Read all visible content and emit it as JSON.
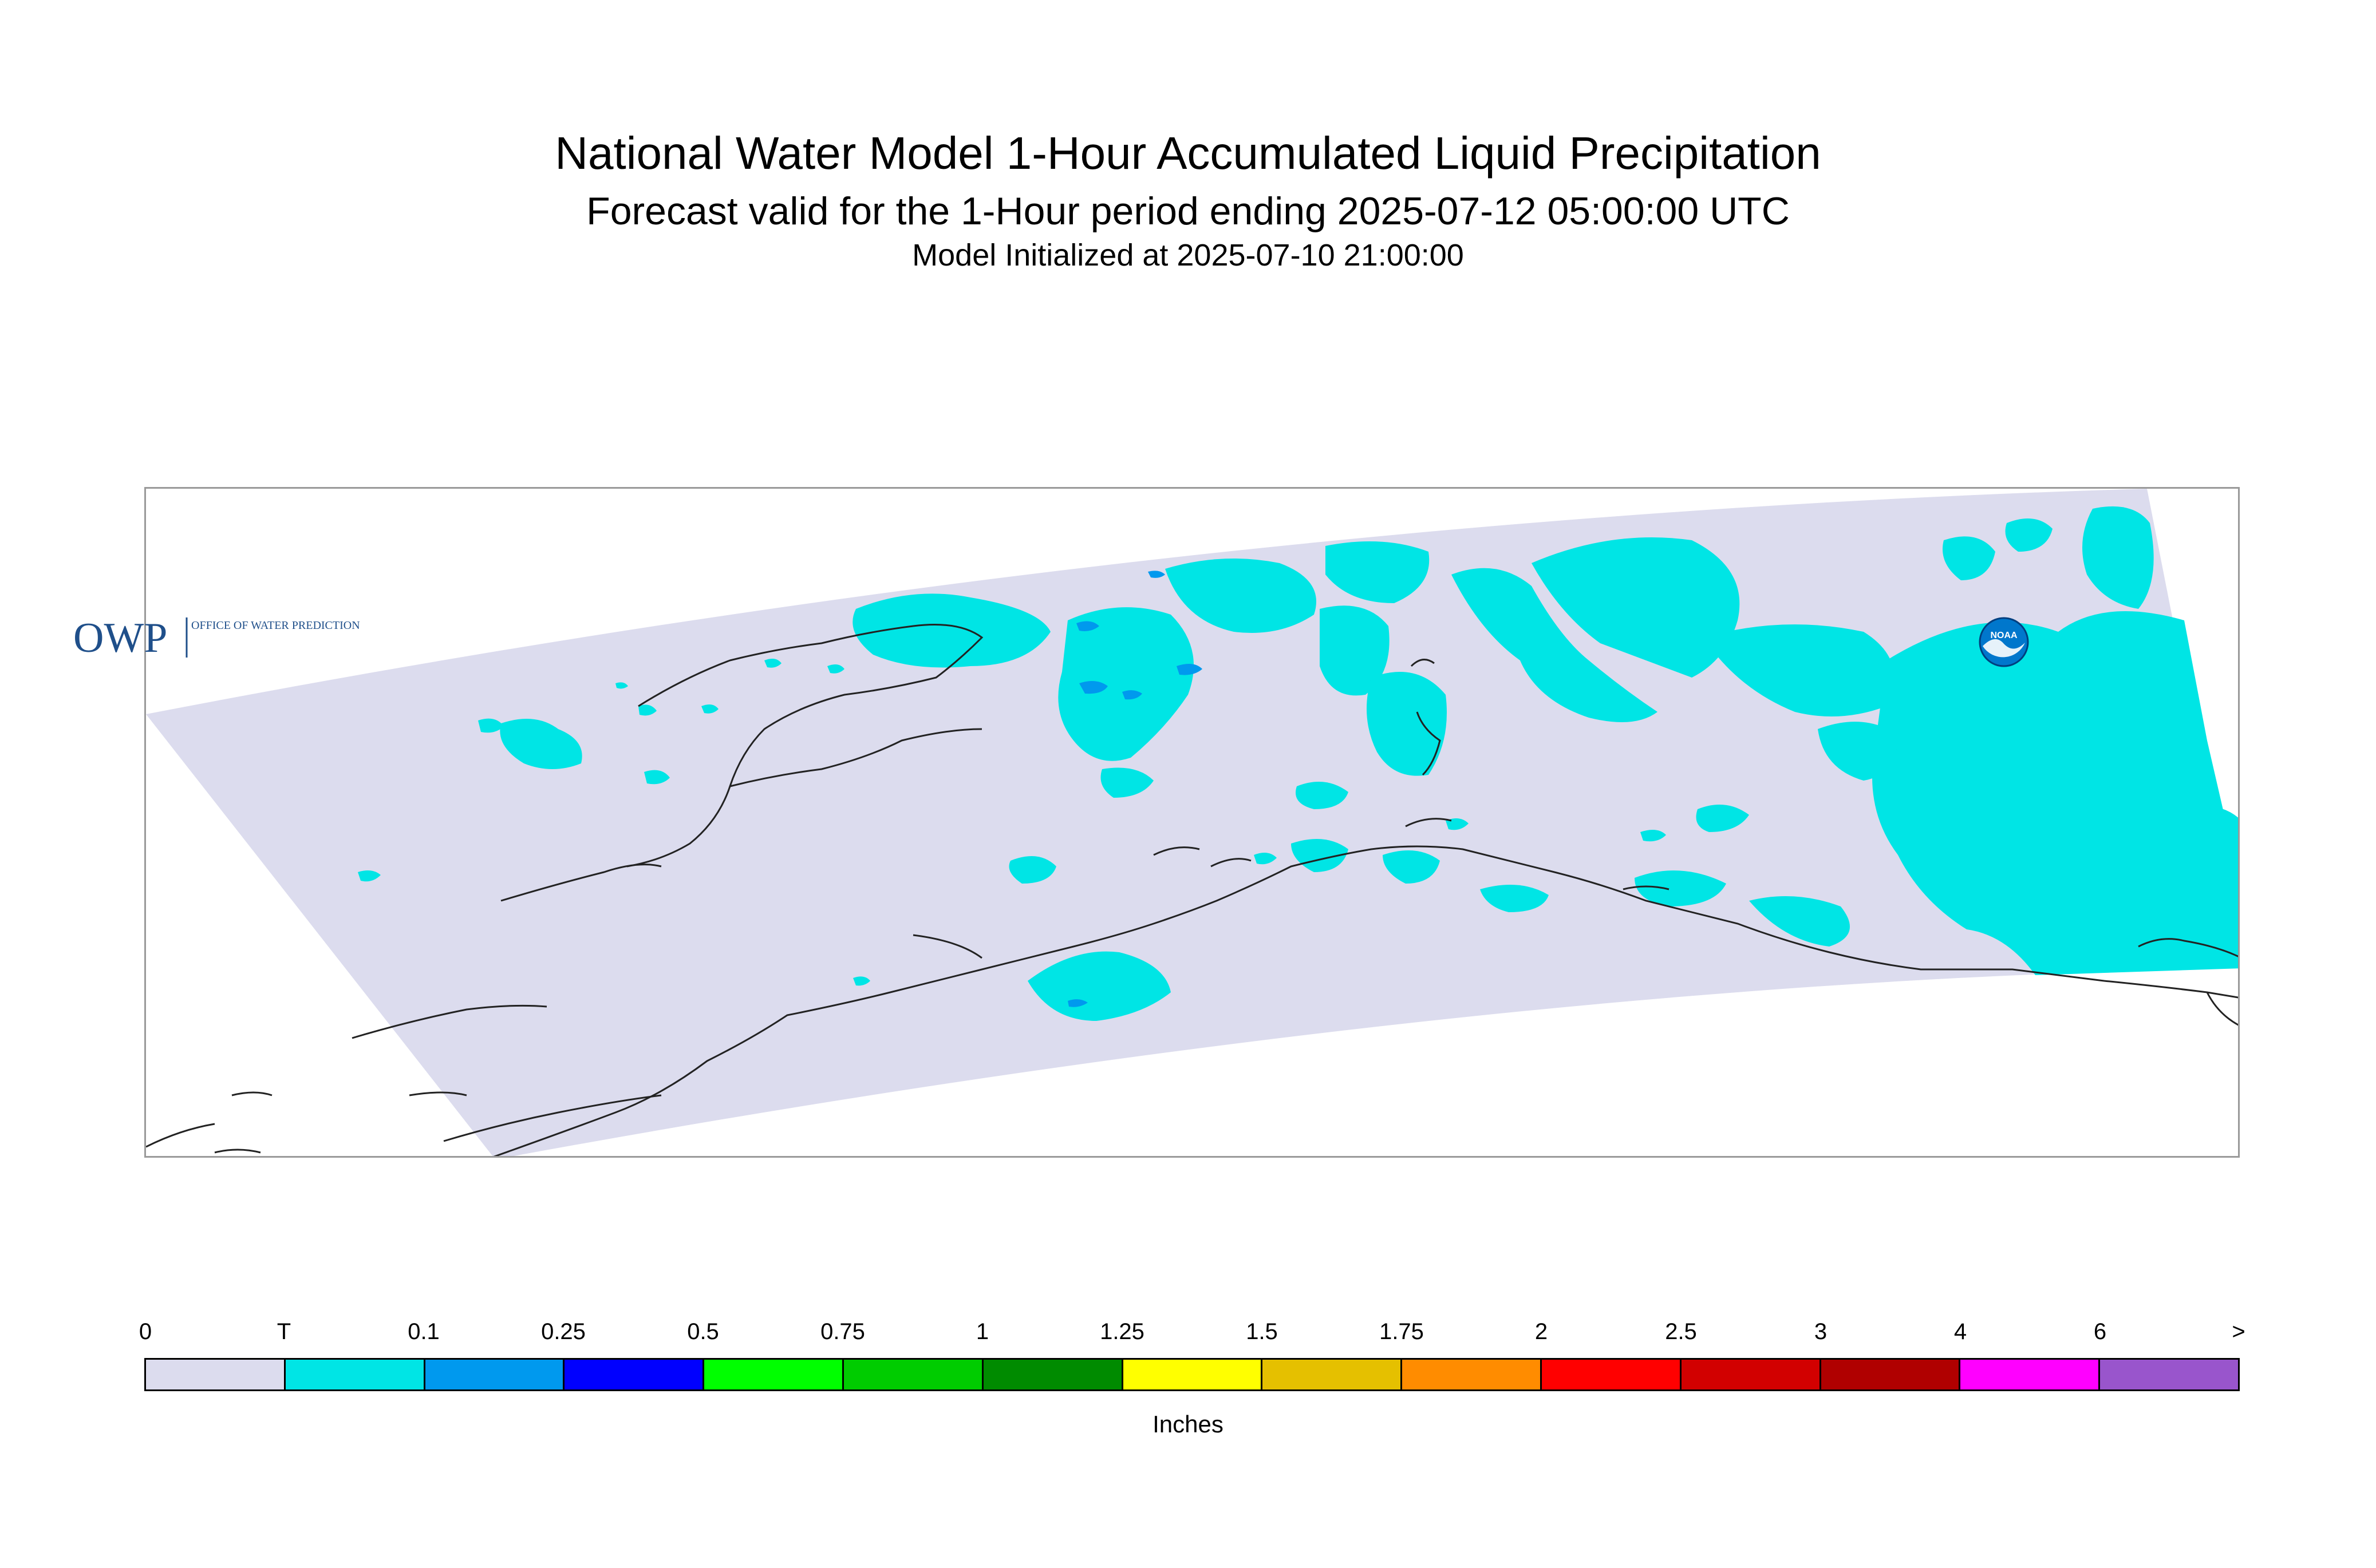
{
  "header": {
    "title": "National Water Model 1-Hour Accumulated Liquid Precipitation",
    "subtitle": "Forecast valid for the 1-Hour period ending 2025-07-12 05:00:00 UTC",
    "init_line": "Model Initialized at 2025-07-10 21:00:00"
  },
  "logos": {
    "owp_mark": "OWP",
    "owp_text": "OFFICE OF WATER PREDICTION",
    "noaa_text": "NOAA"
  },
  "colors": {
    "domain_zero": "#dcdcee",
    "trace": "#00e5e5",
    "trace_dark": "#0099ee",
    "coast": "#222222"
  },
  "legend": {
    "ticks": [
      "0",
      "T",
      "0.1",
      "0.25",
      "0.5",
      "0.75",
      "1",
      "1.25",
      "1.5",
      "1.75",
      "2",
      "2.5",
      "3",
      "4",
      "6",
      ">"
    ],
    "colors": [
      "#dcdcee",
      "#00e5e5",
      "#0099ee",
      "#0000ff",
      "#00ff00",
      "#00cc00",
      "#008b00",
      "#ffff00",
      "#e5c000",
      "#ff8c00",
      "#ff0000",
      "#d20000",
      "#b00000",
      "#ff00ff",
      "#9955cc"
    ],
    "units": "Inches"
  }
}
